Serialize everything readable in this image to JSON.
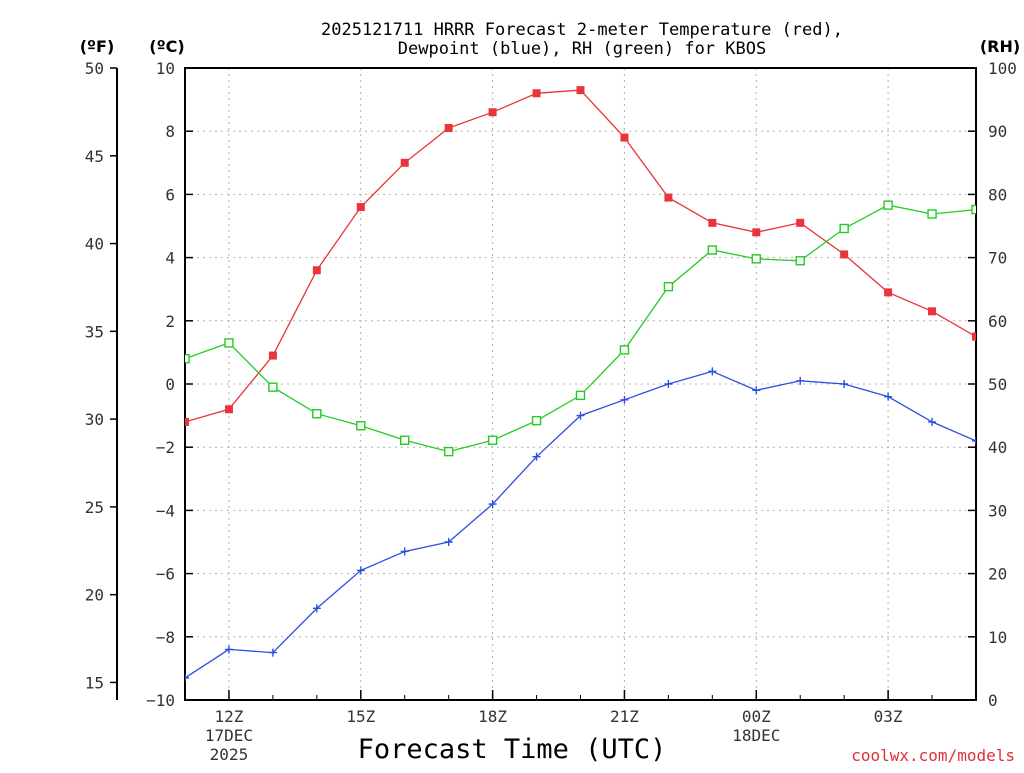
{
  "chart_data": {
    "type": "line",
    "title_line1": "2025121711 HRRR Forecast 2-meter Temperature (red),",
    "title_line2": "Dewpoint (blue), RH (green) for KBOS",
    "xlabel": "Forecast Time (UTC)",
    "credit": "coolwx.com/models",
    "axes": {
      "fahrenheit": {
        "unit_label": "(ºF)",
        "range": [
          14,
          50
        ],
        "ticks": [
          "15",
          "20",
          "25",
          "30",
          "35",
          "40",
          "45",
          "50"
        ]
      },
      "celsius": {
        "unit_label": "(ºC)",
        "range": [
          -10,
          10
        ],
        "ticks": [
          "−10",
          "−8",
          "−6",
          "−4",
          "−2",
          "0",
          "2",
          "4",
          "6",
          "8",
          "10"
        ]
      },
      "rh": {
        "unit_label": "(RH)",
        "range": [
          0,
          100
        ],
        "ticks": [
          "0",
          "10",
          "20",
          "30",
          "40",
          "50",
          "60",
          "70",
          "80",
          "90",
          "100"
        ]
      }
    },
    "x_hours": [
      11,
      12,
      13,
      14,
      15,
      16,
      17,
      18,
      19,
      20,
      21,
      22,
      23,
      0,
      1,
      2,
      3,
      4,
      5
    ],
    "x_ticks": [
      {
        "label": "12Z",
        "line2": "17DEC",
        "line3": "2025"
      },
      {
        "label": "15Z",
        "line2": "",
        "line3": ""
      },
      {
        "label": "18Z",
        "line2": "",
        "line3": ""
      },
      {
        "label": "21Z",
        "line2": "",
        "line3": ""
      },
      {
        "label": "00Z",
        "line2": "18DEC",
        "line3": ""
      },
      {
        "label": "03Z",
        "line2": "",
        "line3": ""
      }
    ],
    "series": [
      {
        "name": "Temperature",
        "unit": "C",
        "color": "#e8343a",
        "marker": "filled-square",
        "values": [
          -1.2,
          -0.8,
          0.9,
          3.6,
          5.6,
          7.0,
          8.1,
          8.6,
          9.2,
          9.3,
          7.8,
          5.9,
          5.1,
          4.8,
          5.1,
          4.1,
          2.9,
          2.3,
          1.5
        ]
      },
      {
        "name": "Dewpoint",
        "unit": "C",
        "color": "#2a4fe0",
        "marker": "plus",
        "values": [
          -9.3,
          -8.4,
          -8.5,
          -7.1,
          -5.9,
          -5.3,
          -5.0,
          -3.8,
          -2.3,
          -1.0,
          -0.5,
          0.0,
          0.4,
          -0.2,
          0.1,
          0.0,
          -0.4,
          -1.2,
          -1.8
        ]
      },
      {
        "name": "RH",
        "unit": "%",
        "color": "#22cc22",
        "marker": "open-square",
        "values": [
          54,
          56.5,
          49.5,
          45.3,
          43.4,
          41.1,
          39.3,
          41.1,
          44.2,
          48.2,
          55.4,
          65.4,
          71.2,
          69.8,
          69.5,
          74.6,
          78.3,
          76.9,
          77.6
        ]
      }
    ]
  }
}
